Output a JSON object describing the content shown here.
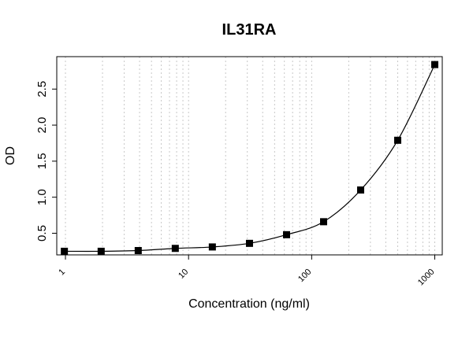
{
  "chart_data": {
    "type": "scatter",
    "title": "IL31RA",
    "xlabel": "Concentration (ng/ml)",
    "ylabel": "OD",
    "x_scale": "log",
    "xlim": [
      0.85,
      1150
    ],
    "ylim": [
      0.2,
      2.95
    ],
    "x_ticks": [
      {
        "value": 1,
        "label": "1"
      },
      {
        "value": 10,
        "label": "10"
      },
      {
        "value": 100,
        "label": "100"
      },
      {
        "value": 1000,
        "label": "1000"
      }
    ],
    "y_ticks": [
      {
        "value": 0.5,
        "label": "0.5"
      },
      {
        "value": 1.0,
        "label": "1.0"
      },
      {
        "value": 1.5,
        "label": "1.5"
      },
      {
        "value": 2.0,
        "label": "2.0"
      },
      {
        "value": 2.5,
        "label": "2.5"
      }
    ],
    "grid": "vertical dotted at minor log ticks",
    "series": [
      {
        "x": [
          0.98,
          1.95,
          3.9,
          7.8,
          15.6,
          31.25,
          62.5,
          125,
          250,
          500,
          1000
        ],
        "y": [
          0.25,
          0.25,
          0.26,
          0.29,
          0.31,
          0.36,
          0.48,
          0.66,
          1.1,
          1.79,
          2.84
        ],
        "marker": "square",
        "fit_curve": true
      }
    ],
    "colors": {
      "marker": "#000000",
      "curve": "#000000",
      "grid": "#c8c8c8"
    }
  }
}
